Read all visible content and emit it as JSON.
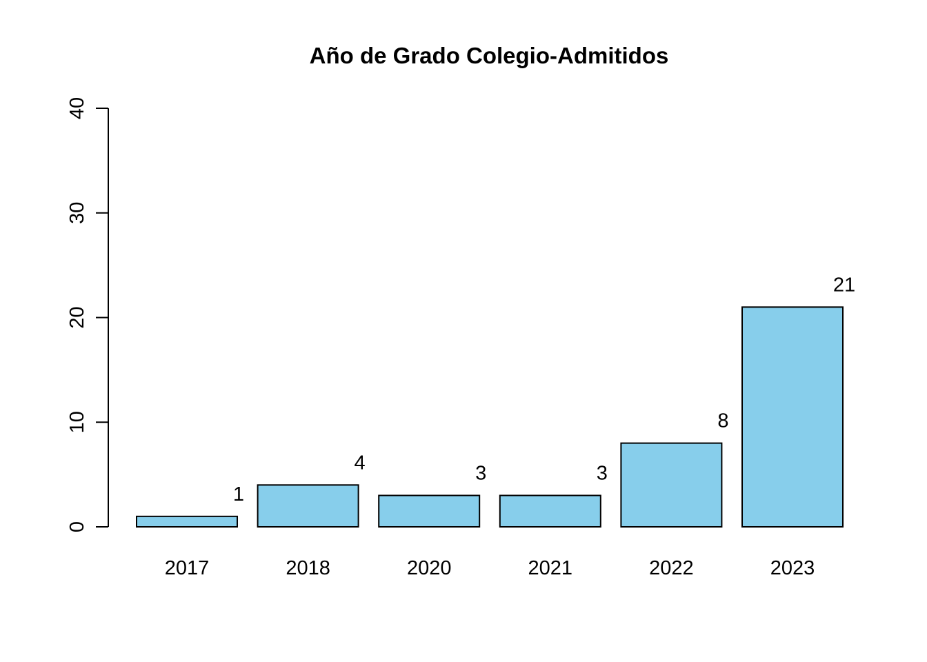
{
  "chart_data": {
    "type": "bar",
    "title": "Año de Grado Colegio-Admitidos",
    "categories": [
      "2017",
      "2018",
      "2020",
      "2021",
      "2022",
      "2023"
    ],
    "values": [
      1,
      4,
      3,
      3,
      8,
      21
    ],
    "data_labels": [
      "1",
      "4",
      "3",
      "3",
      "8",
      "21"
    ],
    "ylim": [
      0,
      40
    ],
    "yticks": [
      0,
      10,
      20,
      30,
      40
    ],
    "ytick_labels": [
      "0",
      "10",
      "20",
      "30",
      "40"
    ],
    "grid": false,
    "bar_color": "#87CEEB",
    "bar_border_color": "#000000"
  }
}
